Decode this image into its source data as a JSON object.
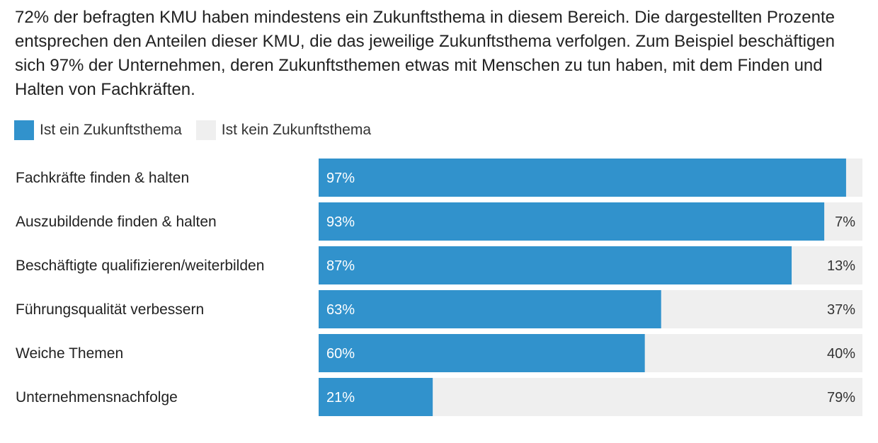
{
  "intro": "72% der befragten KMU haben mindestens ein Zukunftsthema in diesem Bereich. Die dargestellten Prozente entsprechen den Anteilen dieser KMU, die das jeweilige Zukunftsthema verfolgen. Zum Beispiel beschäftigen sich 97% der Unternehmen, deren Zukunftsthemen etwas mit Menschen zu tun haben, mit dem Finden und Halten von Fachkräften.",
  "legend": [
    {
      "label": "Ist ein Zukunftsthema",
      "color": "#3192cc"
    },
    {
      "label": "Ist kein Zukunftsthema",
      "color": "#efefef"
    }
  ],
  "chart_data": {
    "type": "bar",
    "orientation": "horizontal",
    "stacked": true,
    "categories": [
      "Fachkräfte finden & halten",
      "Auszubildende finden & halten",
      "Beschäftigte qualifizieren/weiterbilden",
      "Führungsqualität verbessern",
      "Weiche Themen",
      "Unternehmensnachfolge"
    ],
    "series": [
      {
        "name": "Ist ein Zukunftsthema",
        "color": "#3192cc",
        "values": [
          97,
          93,
          87,
          63,
          60,
          21
        ],
        "labels": [
          "97%",
          "93%",
          "87%",
          "63%",
          "60%",
          "21%"
        ]
      },
      {
        "name": "Ist kein Zukunftsthema",
        "color": "#efefef",
        "values": [
          3,
          7,
          13,
          37,
          40,
          79
        ],
        "labels": [
          "",
          "7%",
          "13%",
          "37%",
          "40%",
          "79%"
        ]
      }
    ],
    "xlim": [
      0,
      100
    ],
    "unit": "%",
    "legend_position": "top-left",
    "grid": false
  }
}
